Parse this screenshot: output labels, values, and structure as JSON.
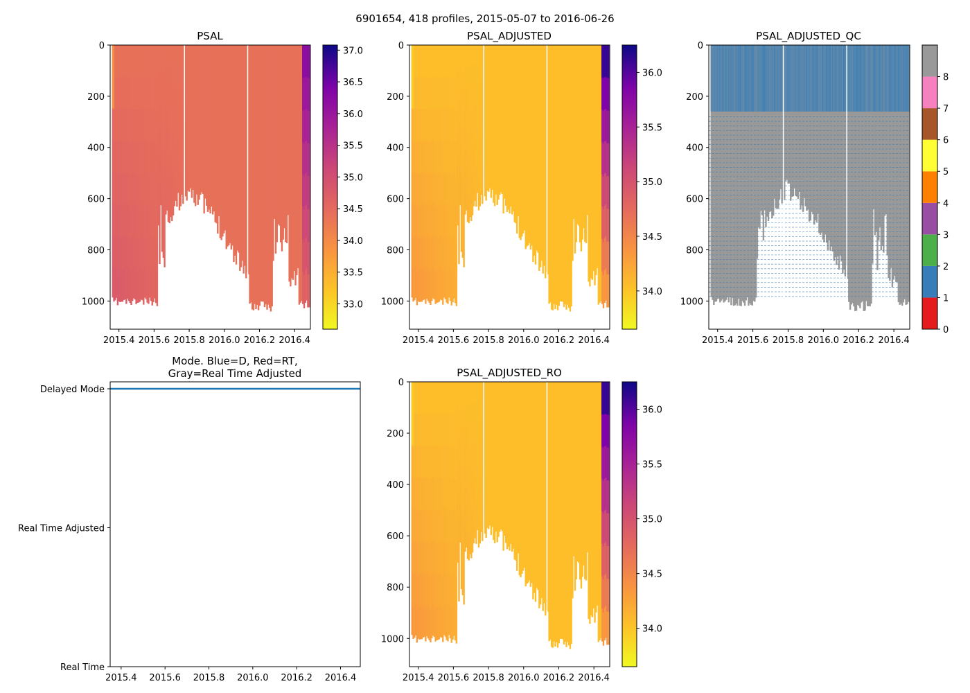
{
  "figure_title": "6901654, 418 profiles, 2015-05-07 to 2016-06-26",
  "chart_data": [
    {
      "id": "psal",
      "type": "heatmap",
      "title": "PSAL",
      "x_ticks": [
        "2015.4",
        "2015.6",
        "2015.8",
        "2016.0",
        "2016.2",
        "2016.4"
      ],
      "x_tick_values": [
        2015.4,
        2015.6,
        2015.8,
        2016.0,
        2016.2,
        2016.4
      ],
      "xlim": [
        2015.35,
        2016.49
      ],
      "y_ticks": [
        "0",
        "200",
        "400",
        "600",
        "800",
        "1000"
      ],
      "y_tick_values": [
        0,
        200,
        400,
        600,
        800,
        1000
      ],
      "ylim": [
        1110,
        0
      ],
      "colormap": "plasma_r",
      "colorbar_ticks": [
        "33.0",
        "33.5",
        "34.0",
        "34.5",
        "35.0",
        "35.5",
        "36.0",
        "36.5",
        "37.0"
      ],
      "colorbar_tick_values": [
        33.0,
        33.5,
        34.0,
        34.5,
        35.0,
        35.5,
        36.0,
        36.5,
        37.0
      ],
      "colorbar_range": [
        32.6,
        37.08
      ],
      "base_value": 34.4,
      "deep_value": 34.8,
      "surface_edge_value": 36.2
    },
    {
      "id": "psal_adjusted",
      "type": "heatmap",
      "title": "PSAL_ADJUSTED",
      "x_ticks": [
        "2015.4",
        "2015.6",
        "2015.8",
        "2016.0",
        "2016.2",
        "2016.4"
      ],
      "x_tick_values": [
        2015.4,
        2015.6,
        2015.8,
        2016.0,
        2016.2,
        2016.4
      ],
      "xlim": [
        2015.35,
        2016.49
      ],
      "y_ticks": [
        "0",
        "200",
        "400",
        "600",
        "800",
        "1000"
      ],
      "y_tick_values": [
        0,
        200,
        400,
        600,
        800,
        1000
      ],
      "ylim": [
        1110,
        0
      ],
      "colormap": "plasma_r",
      "colorbar_ticks": [
        "34.0",
        "34.5",
        "35.0",
        "35.5",
        "36.0"
      ],
      "colorbar_tick_values": [
        34.0,
        34.5,
        35.0,
        35.5,
        36.0
      ],
      "colorbar_range": [
        33.65,
        36.25
      ],
      "base_value": 34.05,
      "deep_value": 34.35,
      "surface_edge_value": 36.1
    },
    {
      "id": "psal_adjusted_qc",
      "type": "heatmap",
      "title": "PSAL_ADJUSTED_QC",
      "x_ticks": [
        "2015.4",
        "2015.6",
        "2015.8",
        "2016.0",
        "2016.2",
        "2016.4"
      ],
      "x_tick_values": [
        2015.4,
        2015.6,
        2015.8,
        2016.0,
        2016.2,
        2016.4
      ],
      "xlim": [
        2015.35,
        2016.49
      ],
      "y_ticks": [
        "0",
        "200",
        "400",
        "600",
        "800",
        "1000"
      ],
      "y_tick_values": [
        0,
        200,
        400,
        600,
        800,
        1000
      ],
      "ylim": [
        1110,
        0
      ],
      "colorbar_ticks": [
        "0",
        "1",
        "2",
        "3",
        "4",
        "5",
        "6",
        "7",
        "8"
      ],
      "qc_colors": [
        "#e41a1c",
        "#377eb8",
        "#4daf4a",
        "#984ea3",
        "#ff7f00",
        "#ffff33",
        "#a65628",
        "#f781bf",
        "#999999"
      ],
      "mixed_layer_bottom": 260
    },
    {
      "id": "mode",
      "type": "line",
      "title": "Mode. Blue=D, Red=RT,\nGray=Real Time Adjusted",
      "x_ticks": [
        "2015.4",
        "2015.6",
        "2015.8",
        "2016.0",
        "2016.2",
        "2016.4"
      ],
      "x_tick_values": [
        2015.4,
        2015.6,
        2015.8,
        2016.0,
        2016.2,
        2016.4
      ],
      "xlim": [
        2015.35,
        2016.49
      ],
      "y_ticks": [
        "Delayed Mode",
        "Real Time Adjusted",
        "Real Time"
      ],
      "y_tick_values": [
        2,
        1,
        0
      ],
      "ylim": [
        0,
        2.05
      ],
      "series": [
        {
          "name": "Delayed Mode",
          "x": [
            2015.35,
            2016.49
          ],
          "values": [
            2,
            2
          ],
          "color": "#1f77b4"
        }
      ]
    },
    {
      "id": "psal_adjusted_ro",
      "type": "heatmap",
      "title": "PSAL_ADJUSTED_RO",
      "x_ticks": [
        "2015.4",
        "2015.6",
        "2015.8",
        "2016.0",
        "2016.2",
        "2016.4"
      ],
      "x_tick_values": [
        2015.4,
        2015.6,
        2015.8,
        2016.0,
        2016.2,
        2016.4
      ],
      "xlim": [
        2015.35,
        2016.49
      ],
      "y_ticks": [
        "0",
        "200",
        "400",
        "600",
        "800",
        "1000"
      ],
      "y_tick_values": [
        0,
        200,
        400,
        600,
        800,
        1000
      ],
      "ylim": [
        1110,
        0
      ],
      "colormap": "plasma_r",
      "colorbar_ticks": [
        "34.0",
        "34.5",
        "35.0",
        "35.5",
        "36.0"
      ],
      "colorbar_tick_values": [
        34.0,
        34.5,
        35.0,
        35.5,
        36.0
      ],
      "colorbar_range": [
        33.65,
        36.25
      ],
      "base_value": 34.05,
      "deep_value": 34.35,
      "surface_edge_value": 36.1
    }
  ]
}
